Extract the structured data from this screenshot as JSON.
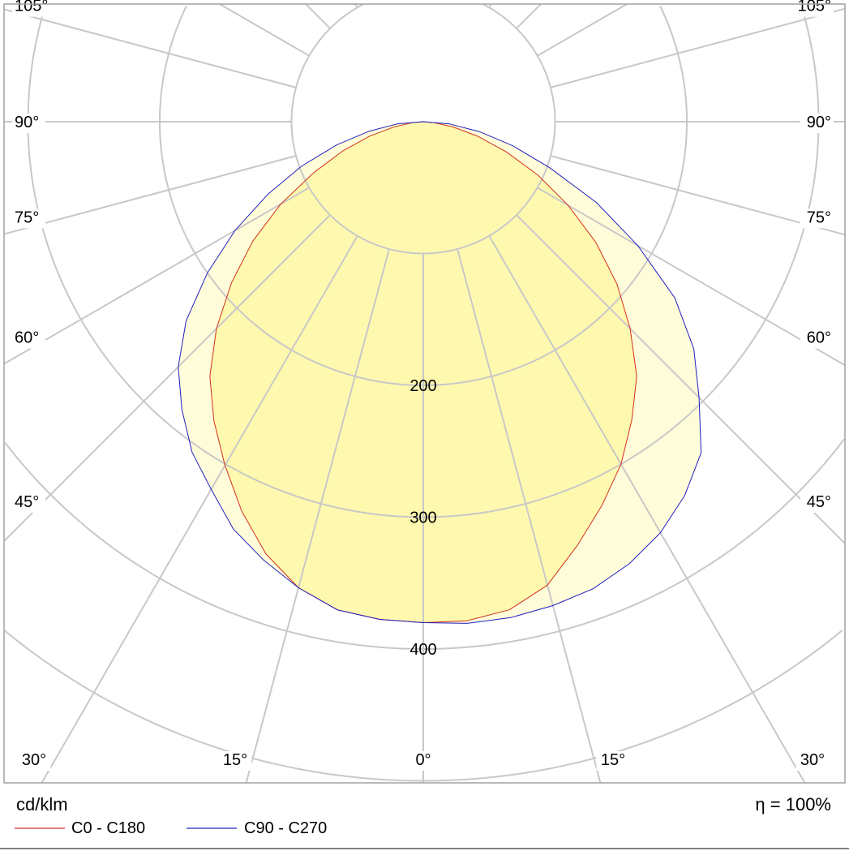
{
  "chart_data": {
    "type": "polar-line",
    "unit": "cd/klm",
    "efficiency": "η = 100%",
    "radial_ticks": [
      200,
      300,
      400
    ],
    "radial_grid": [
      100,
      200,
      300,
      400,
      500
    ],
    "angle_step": 15,
    "angle_labels": {
      "left": [
        "105°",
        "90°",
        "75°",
        "60°",
        "45°"
      ],
      "right": [
        "105°",
        "90°",
        "75°",
        "60°",
        "45°"
      ],
      "bottom": [
        "30°",
        "15°",
        "0°",
        "15°",
        "30°"
      ]
    },
    "gamma": [
      -90,
      -85,
      -80,
      -75,
      -70,
      -65,
      -60,
      -55,
      -50,
      -45,
      -40,
      -35,
      -30,
      -25,
      -20,
      -15,
      -10,
      -5,
      0,
      5,
      10,
      15,
      20,
      25,
      30,
      35,
      40,
      45,
      50,
      55,
      60,
      65,
      70,
      75,
      80,
      85,
      90
    ],
    "series": [
      {
        "name": "C0 - C180",
        "color": "#d03020",
        "values": [
          0,
          8,
          22,
          42,
          65,
          92,
          125,
          158,
          190,
          222,
          252,
          277,
          301,
          326,
          349,
          366,
          376,
          379,
          380,
          380,
          376,
          364,
          342,
          321,
          300,
          276,
          252,
          222,
          192,
          160,
          127,
          96,
          67,
          43,
          23,
          8,
          0
        ]
      },
      {
        "name": "C90 - C270",
        "color": "#2020c0",
        "values": [
          0,
          20,
          42,
          68,
          98,
          130,
          165,
          200,
          235,
          263,
          285,
          306,
          322,
          341,
          354,
          366,
          376,
          379,
          380,
          382,
          382,
          380,
          377,
          370,
          360,
          346,
          328,
          296,
          268,
          233,
          188,
          145,
          102,
          70,
          43,
          20,
          0
        ]
      }
    ],
    "grid": true,
    "legend": "bottom-left"
  },
  "colors": {
    "grid": "#c8c8c8",
    "frame": "#a0a0a0",
    "fill": "#fff8a0"
  }
}
